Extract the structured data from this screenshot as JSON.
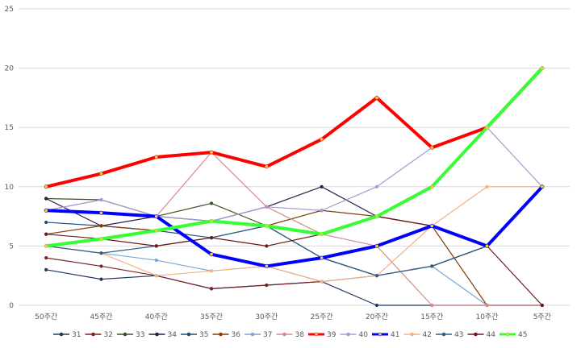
{
  "chart_data": {
    "type": "line",
    "title": "",
    "xlabel": "",
    "ylabel": "",
    "ylim": [
      0,
      25
    ],
    "yticks": [
      0,
      5,
      10,
      15,
      20,
      25
    ],
    "grid": true,
    "legend_position": "bottom",
    "categories": [
      "50주간",
      "45주간",
      "40주간",
      "35주간",
      "30주간",
      "25주간",
      "20주간",
      "15주간",
      "10주간",
      "5주간"
    ],
    "series": [
      {
        "name": "31",
        "color": "#1f3864",
        "width": 1.2,
        "values": [
          3,
          2.2,
          2.5,
          1.4,
          1.7,
          2,
          0,
          0,
          0,
          0
        ]
      },
      {
        "name": "32",
        "color": "#7b2424",
        "width": 1.2,
        "values": [
          4,
          3.3,
          2.5,
          1.4,
          1.7,
          2,
          2.5,
          3.3,
          5,
          10
        ]
      },
      {
        "name": "33",
        "color": "#375623",
        "width": 1.2,
        "values": [
          9,
          8.9,
          7.5,
          8.6,
          6.7,
          4,
          2.5,
          3.3,
          5,
          10
        ]
      },
      {
        "name": "34",
        "color": "#2e1a47",
        "width": 1.2,
        "values": [
          9,
          6.7,
          7.5,
          7.1,
          8.3,
          10,
          7.5,
          6.7,
          5,
          10
        ]
      },
      {
        "name": "35",
        "color": "#1f4e79",
        "width": 1.2,
        "values": [
          7,
          6.7,
          6.3,
          5.7,
          6.7,
          4,
          2.5,
          3.3,
          5,
          10
        ]
      },
      {
        "name": "36",
        "color": "#843c0c",
        "width": 1.2,
        "values": [
          6,
          6.7,
          6.3,
          7.1,
          6.7,
          8,
          7.5,
          6.7,
          0,
          0
        ]
      },
      {
        "name": "37",
        "color": "#7aa6d6",
        "width": 1.2,
        "values": [
          5,
          4.4,
          3.8,
          2.9,
          3.3,
          2,
          2.5,
          3.3,
          0,
          0
        ]
      },
      {
        "name": "38",
        "color": "#d88a8a",
        "width": 1.2,
        "values": [
          8,
          8.9,
          7.5,
          12.9,
          8.3,
          6,
          5,
          0,
          0,
          0
        ]
      },
      {
        "name": "39",
        "color": "#ff0000",
        "width": 4,
        "values": [
          10,
          11.1,
          12.5,
          12.9,
          11.7,
          14,
          17.5,
          13.3,
          15,
          20
        ]
      },
      {
        "name": "40",
        "color": "#a79ad3",
        "width": 1.2,
        "values": [
          8,
          8.9,
          7.5,
          7.1,
          8.3,
          8,
          10,
          13.3,
          15,
          10
        ]
      },
      {
        "name": "41",
        "color": "#0000ff",
        "width": 4,
        "values": [
          8,
          7.8,
          7.5,
          4.3,
          3.3,
          4,
          5,
          6.7,
          5,
          10
        ]
      },
      {
        "name": "42",
        "color": "#f4b183",
        "width": 1.2,
        "values": [
          5,
          4.4,
          2.5,
          2.9,
          3.3,
          2,
          2.5,
          6.7,
          10,
          10
        ]
      },
      {
        "name": "43",
        "color": "#2f5f8a",
        "width": 1.2,
        "values": [
          5,
          4.4,
          5,
          5.7,
          6.7,
          4,
          2.5,
          3.3,
          5,
          10
        ]
      },
      {
        "name": "44",
        "color": "#6b1a1a",
        "width": 1.2,
        "values": [
          6,
          5.6,
          5,
          5.7,
          5,
          6,
          7.5,
          6.7,
          5,
          0
        ]
      },
      {
        "name": "45",
        "color": "#33ff33",
        "width": 4,
        "values": [
          5,
          5.6,
          6.3,
          7.1,
          6.7,
          6,
          7.5,
          10,
          15,
          20
        ]
      }
    ]
  }
}
